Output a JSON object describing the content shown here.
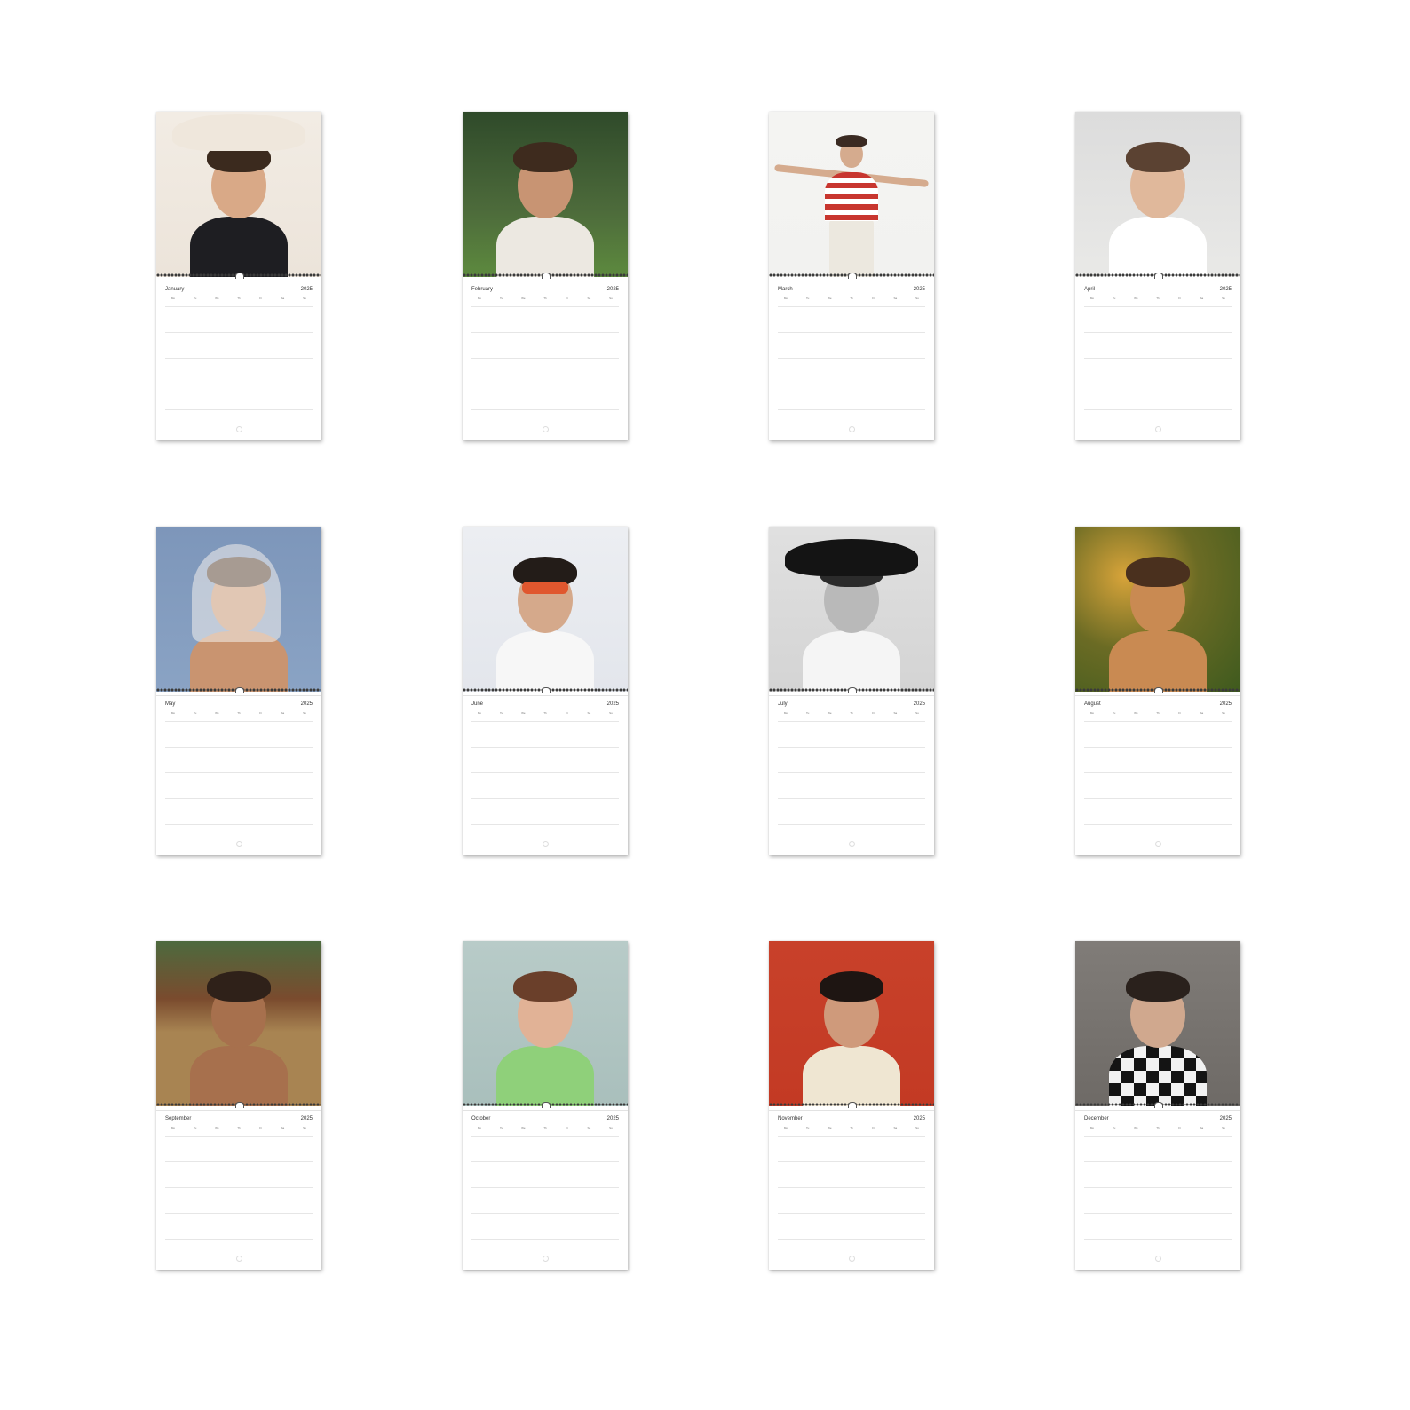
{
  "year": "2025",
  "weekdays": [
    "Mo",
    "Tu",
    "We",
    "Th",
    "Fr",
    "Sa",
    "Su"
  ],
  "pages": [
    {
      "month": "January",
      "colors": {
        "bg": "#ece4da",
        "top": "#f2ece4",
        "hair": "#3b2a1e",
        "skin": "#d9a987",
        "shirt": "#1e1e22",
        "hat": "#efe7dc"
      }
    },
    {
      "month": "February",
      "colors": {
        "bg": "#4d6b3b",
        "top": "#2f4a2a",
        "hair": "#3e2b1e",
        "skin": "#c89473",
        "shirt": "#ece8e1",
        "ground": "#5d8a3e"
      }
    },
    {
      "month": "March",
      "colors": {
        "bg": "#f2f2f0",
        "top": "#f4f4f2",
        "hair": "#3a2a22",
        "skin": "#d5ab8e",
        "shirt": "#c8362f",
        "pants": "#ece8df"
      }
    },
    {
      "month": "April",
      "colors": {
        "bg": "#e9e9e7",
        "top": "#dcdcdc",
        "hair": "#5b4232",
        "skin": "#e0b89b",
        "shirt": "#ffffff"
      }
    },
    {
      "month": "May",
      "colors": {
        "bg": "#8aa3c4",
        "top": "#7d96ba",
        "hair": "#4a3325",
        "skin": "#c99470",
        "veil": "#f4f1ec"
      }
    },
    {
      "month": "June",
      "colors": {
        "bg": "#e3e6ec",
        "top": "#eceef2",
        "hair": "#231c18",
        "skin": "#d5a98b",
        "shirt": "#f7f7f7",
        "glasses": "#e0572e"
      }
    },
    {
      "month": "July",
      "colors": {
        "bg": "#d4d4d4",
        "top": "#e0e0e0",
        "hair": "#2b2b2b",
        "skin": "#b9b9b9",
        "hat": "#141414",
        "shirt": "#f5f5f5"
      }
    },
    {
      "month": "August",
      "colors": {
        "bg": "#6b6b24",
        "top": "#3e5a1e",
        "hair": "#4a301e",
        "skin": "#c98a52",
        "light": "#d8a43a"
      }
    },
    {
      "month": "September",
      "colors": {
        "bg": "#6f8a55",
        "top": "#4d6a3e",
        "hair": "#2f2119",
        "skin": "#a7704d",
        "hay": "#a88452",
        "horse": "#7a4b2e"
      }
    },
    {
      "month": "October",
      "colors": {
        "bg": "#a9bfbc",
        "top": "#b8cbc8",
        "hair": "#6a3f2a",
        "skin": "#e1b296",
        "shirt": "#8fd07a"
      }
    },
    {
      "month": "November",
      "colors": {
        "bg": "#c33a24",
        "top": "#c8412a",
        "hair": "#1e1512",
        "skin": "#cf9a7b",
        "shirt": "#efe6d2"
      }
    },
    {
      "month": "December",
      "colors": {
        "bg": "#6e6a66",
        "top": "#807c78",
        "hair": "#2a211c",
        "skin": "#d0a88e",
        "shirt": "#141414",
        "check": "#f2f2f2"
      }
    }
  ]
}
